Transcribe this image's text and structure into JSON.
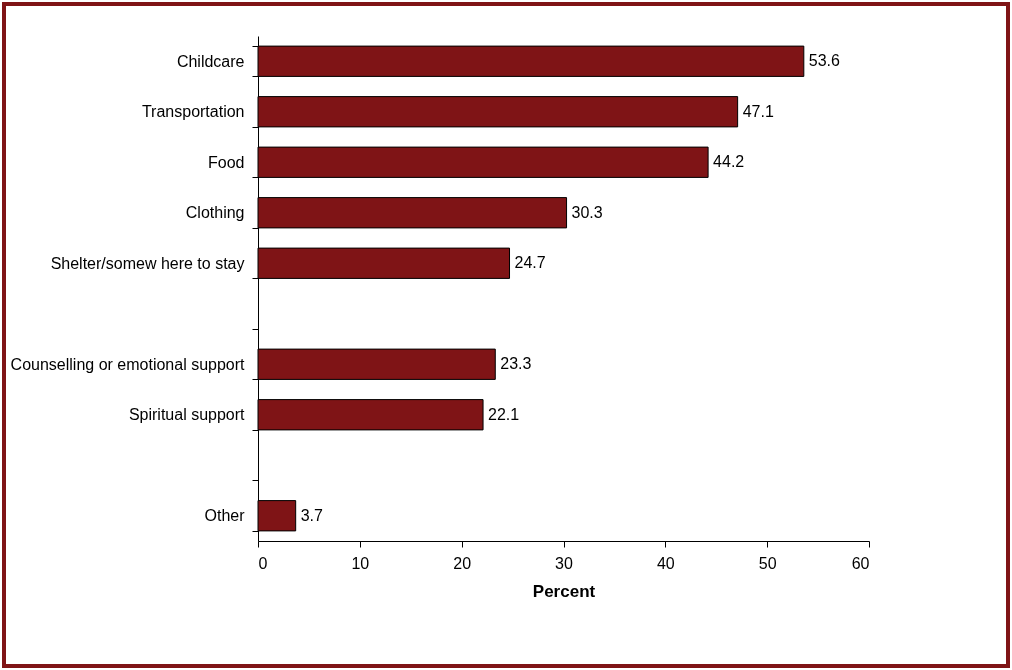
{
  "chart_data": {
    "type": "bar",
    "orientation": "horizontal",
    "xlabel": "Percent",
    "categories": [
      "Childcare",
      "Transportation",
      "Food",
      "Clothing",
      "Shelter/somew here to stay",
      null,
      "Counselling or emotional support",
      "Spiritual support",
      null,
      "Other"
    ],
    "values": [
      53.6,
      47.1,
      44.2,
      30.3,
      24.7,
      null,
      23.3,
      22.1,
      null,
      3.7
    ],
    "color": "#7f1416",
    "xlim": [
      0,
      60
    ],
    "xticks": [
      0,
      10,
      20,
      30,
      40,
      50,
      60
    ],
    "data_labels": true,
    "grid": false
  }
}
